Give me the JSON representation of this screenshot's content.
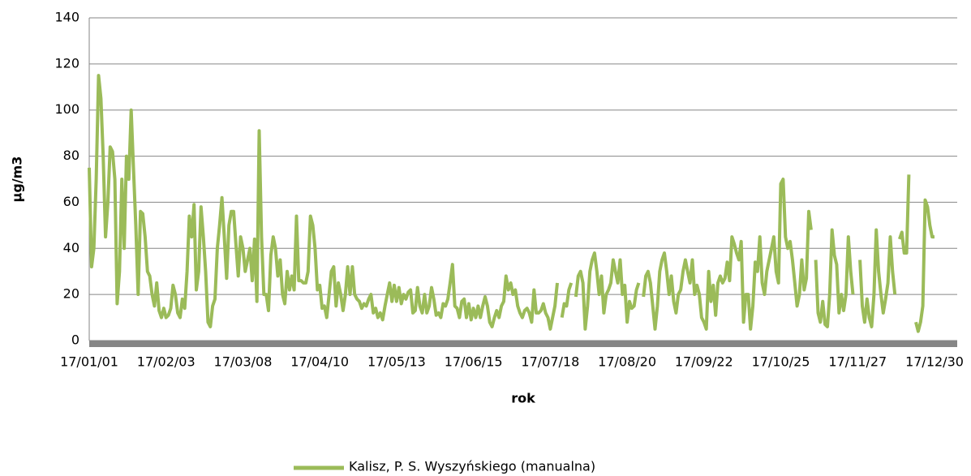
{
  "chart_data": {
    "type": "line",
    "y_label": "µg/m3",
    "x_label": "rok",
    "categories": [
      "17/01/01",
      null,
      null,
      null,
      null,
      null,
      null,
      null,
      null,
      null,
      null,
      null,
      null,
      null,
      null,
      null,
      null,
      null,
      null,
      null,
      null,
      null,
      null,
      null,
      null,
      null,
      null,
      null,
      null,
      null,
      null,
      null,
      null,
      "17/02/03",
      null,
      null,
      null,
      null,
      null,
      null,
      null,
      null,
      null,
      null,
      null,
      null,
      null,
      null,
      null,
      null,
      null,
      null,
      null,
      null,
      null,
      null,
      null,
      null,
      null,
      null,
      null,
      null,
      null,
      null,
      null,
      null,
      "17/03/08",
      null,
      null,
      null,
      null,
      null,
      null,
      null,
      null,
      null,
      null,
      null,
      null,
      null,
      null,
      null,
      null,
      null,
      null,
      null,
      null,
      null,
      null,
      null,
      null,
      null,
      null,
      null,
      null,
      null,
      null,
      null,
      null,
      "17/04/10",
      null,
      null,
      null,
      null,
      null,
      null,
      null,
      null,
      null,
      null,
      null,
      null,
      null,
      null,
      null,
      null,
      null,
      null,
      null,
      null,
      null,
      null,
      null,
      null,
      null,
      null,
      null,
      null,
      null,
      null,
      null,
      null,
      "17/05/13",
      null,
      null,
      null,
      null,
      null,
      null,
      null,
      null,
      null,
      null,
      null,
      null,
      null,
      null,
      null,
      null,
      null,
      null,
      null,
      null,
      null,
      null,
      null,
      null,
      null,
      null,
      null,
      null,
      null,
      null,
      null,
      null,
      "17/06/15",
      null,
      null,
      null,
      null,
      null,
      null,
      null,
      null,
      null,
      null,
      null,
      null,
      null,
      null,
      null,
      null,
      null,
      null,
      null,
      null,
      null,
      null,
      null,
      null,
      null,
      null,
      null,
      null,
      null,
      null,
      null,
      null,
      "17/07/18",
      null,
      null,
      null,
      null,
      null,
      null,
      null,
      null,
      null,
      null,
      null,
      null,
      null,
      null,
      null,
      null,
      null,
      null,
      null,
      null,
      null,
      null,
      null,
      null,
      null,
      null,
      null,
      null,
      null,
      null,
      null,
      null,
      "17/08/20",
      null,
      null,
      null,
      null,
      null,
      null,
      null,
      null,
      null,
      null,
      null,
      null,
      null,
      null,
      null,
      null,
      null,
      null,
      null,
      null,
      null,
      null,
      null,
      null,
      null,
      null,
      null,
      null,
      null,
      null,
      null,
      null,
      "17/09/22",
      null,
      null,
      null,
      null,
      null,
      null,
      null,
      null,
      null,
      null,
      null,
      null,
      null,
      null,
      null,
      null,
      null,
      null,
      null,
      null,
      null,
      null,
      null,
      null,
      null,
      null,
      null,
      null,
      null,
      null,
      null,
      null,
      "17/10/25",
      null,
      null,
      null,
      null,
      null,
      null,
      null,
      null,
      null,
      null,
      null,
      null,
      null,
      null,
      null,
      null,
      null,
      null,
      null,
      null,
      null,
      null,
      null,
      null,
      null,
      null,
      null,
      null,
      null,
      null,
      null,
      null,
      "17/11/27",
      null,
      null,
      null,
      null,
      null,
      null,
      null,
      null,
      null,
      null,
      null,
      null,
      null,
      null,
      null,
      null,
      null,
      null,
      null,
      null,
      null,
      null,
      null,
      null,
      null,
      null,
      null,
      null,
      null,
      null,
      null,
      null,
      "17/12/30"
    ],
    "series": [
      {
        "name": "Kalisz, P. S. Wyszyńskiego (manualna)",
        "color": "#9bbb59",
        "values": [
          75,
          32,
          40,
          70,
          115,
          105,
          80,
          45,
          60,
          84,
          82,
          70,
          16,
          30,
          70,
          40,
          80,
          70,
          100,
          75,
          50,
          20,
          56,
          55,
          45,
          30,
          28,
          20,
          15,
          25,
          13,
          10,
          14,
          10,
          11,
          14,
          24,
          20,
          12,
          10,
          18,
          14,
          30,
          54,
          45,
          59,
          22,
          30,
          58,
          45,
          30,
          8,
          6,
          15,
          18,
          40,
          50,
          62,
          45,
          27,
          50,
          56,
          56,
          42,
          28,
          45,
          40,
          30,
          35,
          40,
          26,
          44,
          17,
          91,
          45,
          20,
          20,
          13,
          37,
          45,
          40,
          28,
          35,
          20,
          16,
          30,
          22,
          28,
          22,
          54,
          26,
          26,
          25,
          25,
          30,
          54,
          50,
          40,
          22,
          24,
          14,
          15,
          10,
          20,
          30,
          32,
          15,
          25,
          20,
          13,
          20,
          32,
          20,
          32,
          20,
          18,
          17,
          14,
          16,
          15,
          18,
          20,
          12,
          14,
          10,
          12,
          9,
          15,
          20,
          25,
          17,
          24,
          17,
          23,
          16,
          20,
          18,
          21,
          22,
          12,
          13,
          23,
          15,
          12,
          20,
          12,
          15,
          23,
          18,
          11,
          12,
          10,
          16,
          15,
          18,
          25,
          33,
          15,
          14,
          10,
          17,
          18,
          10,
          16,
          9,
          14,
          10,
          15,
          10,
          15,
          19,
          15,
          8,
          6,
          10,
          13,
          10,
          15,
          17,
          28,
          22,
          25,
          20,
          22,
          15,
          12,
          10,
          13,
          14,
          12,
          8,
          22,
          12,
          12,
          13,
          16,
          12,
          10,
          5,
          10,
          15,
          25,
          null,
          10,
          16,
          15,
          22,
          25,
          null,
          19,
          28,
          30,
          25,
          5,
          15,
          30,
          35,
          38,
          30,
          20,
          28,
          12,
          20,
          22,
          25,
          35,
          30,
          25,
          35,
          20,
          24,
          8,
          17,
          14,
          15,
          22,
          25,
          null,
          19,
          28,
          30,
          25,
          15,
          5,
          15,
          30,
          35,
          38,
          30,
          20,
          28,
          17,
          12,
          20,
          22,
          30,
          35,
          30,
          25,
          35,
          20,
          24,
          20,
          10,
          8,
          5,
          30,
          17,
          24,
          11,
          25,
          28,
          25,
          27,
          34,
          26,
          45,
          42,
          38,
          35,
          43,
          8,
          20,
          20,
          5,
          15,
          34,
          30,
          45,
          25,
          20,
          30,
          35,
          40,
          45,
          30,
          25,
          68,
          70,
          45,
          40,
          43,
          35,
          25,
          15,
          20,
          35,
          22,
          27,
          56,
          48,
          null,
          35,
          12,
          8,
          17,
          7,
          6,
          20,
          48,
          37,
          33,
          12,
          20,
          13,
          20,
          45,
          30,
          20,
          null,
          null,
          35,
          15,
          8,
          18,
          10,
          6,
          20,
          48,
          30,
          20,
          12,
          18,
          25,
          45,
          30,
          20,
          null,
          44,
          47,
          38,
          38,
          72,
          null,
          null,
          8,
          4,
          8,
          15,
          61,
          58,
          50,
          45,
          45
        ]
      }
    ],
    "ylim": [
      0,
      140
    ],
    "yticks": [
      0,
      20,
      40,
      60,
      80,
      100,
      120,
      140
    ],
    "grid": true,
    "legend": "bottom"
  }
}
